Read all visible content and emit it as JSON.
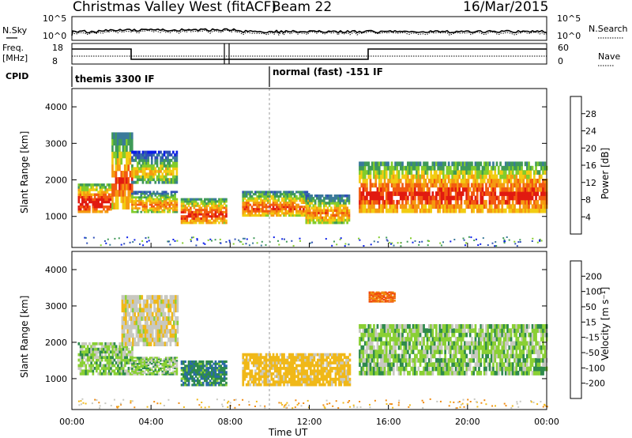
{
  "header": {
    "station": "Christmas Valley West (fitACF)",
    "beam": "Beam 22",
    "date": "16/Mar/2015"
  },
  "strips": {
    "nsky_label": "N.Sky",
    "nsky_ticks": [
      "10^5",
      "10^0"
    ],
    "nsearch_label": "N.Search",
    "nsearch_ticks": [
      "10^5",
      "10^0"
    ],
    "freq_label": "Freq.",
    "freq_unit": "[MHz]",
    "freq_ticks": [
      "18",
      "8"
    ],
    "nave_label": "Nave",
    "nave_ticks": [
      "60",
      "0"
    ],
    "cpid_label": "CPID",
    "cpid_text_1": "themis 3300 IF",
    "cpid_text_2": "normal (fast) -151 IF"
  },
  "colors": {
    "power_scale": [
      "#0a1ee8",
      "#2f4fb8",
      "#3a7a9a",
      "#3f9a58",
      "#82cc2c",
      "#f2cc12",
      "#f59a10",
      "#f25a10",
      "#e11a10"
    ],
    "velocity_scale": [
      "#1e2ed8",
      "#2a6aa8",
      "#2e8a4c",
      "#8ad034",
      "#c8c8c0",
      "#f0b818",
      "#f08a10",
      "#f04a10",
      "#e01010"
    ]
  },
  "chart_data": [
    {
      "type": "heatmap",
      "panel": "power",
      "ylabel": "Slant Range [km]",
      "yticks": [
        "4000",
        "3000",
        "2000",
        "1000"
      ],
      "ylim": [
        150,
        4500
      ],
      "xlim": [
        0,
        24
      ],
      "colorbar_label": "Power [dB]",
      "colorbar_ticks": [
        "28",
        "24",
        "20",
        "16",
        "12",
        "8",
        "4"
      ],
      "echo_bands": [
        {
          "t_start": 0.3,
          "t_end": 2.0,
          "range_min": 1100,
          "range_max": 1900,
          "power_db": 22
        },
        {
          "t_start": 2.0,
          "t_end": 3.0,
          "range_min": 1200,
          "range_max": 3300,
          "power_db": 18
        },
        {
          "t_start": 3.0,
          "t_end": 5.3,
          "range_min": 1100,
          "range_max": 1700,
          "power_db": 16
        },
        {
          "t_start": 3.0,
          "t_end": 5.3,
          "range_min": 1900,
          "range_max": 2800,
          "power_db": 12
        },
        {
          "t_start": 5.5,
          "t_end": 7.8,
          "range_min": 800,
          "range_max": 1500,
          "power_db": 20
        },
        {
          "t_start": 8.6,
          "t_end": 12.0,
          "range_min": 1000,
          "range_max": 1700,
          "power_db": 18
        },
        {
          "t_start": 11.8,
          "t_end": 14.0,
          "range_min": 800,
          "range_max": 1600,
          "power_db": 16
        },
        {
          "t_start": 14.5,
          "t_end": 24.0,
          "range_min": 1100,
          "range_max": 2500,
          "power_db": 20
        }
      ]
    },
    {
      "type": "heatmap",
      "panel": "velocity",
      "ylabel": "Slant Range [km]",
      "yticks": [
        "4000",
        "3000",
        "2000",
        "1000"
      ],
      "ylim": [
        150,
        4500
      ],
      "xlim": [
        0,
        24
      ],
      "xticks": [
        "00:00",
        "04:00",
        "08:00",
        "12:00",
        "16:00",
        "20:00",
        "00:00"
      ],
      "xlabel": "Time UT",
      "colorbar_label": "Velocity [m s⁻¹]",
      "colorbar_ticks": [
        "200",
        "100",
        "50",
        "15",
        "-15",
        "-50",
        "-100",
        "-200"
      ],
      "echo_bands": [
        {
          "t_start": 0.3,
          "t_end": 3.0,
          "range_min": 1100,
          "range_max": 2000,
          "velocity": 0
        },
        {
          "t_start": 2.5,
          "t_end": 5.3,
          "range_min": 1900,
          "range_max": 3300,
          "velocity": -40
        },
        {
          "t_start": 3.0,
          "t_end": 5.3,
          "range_min": 1100,
          "range_max": 1600,
          "velocity": 0
        },
        {
          "t_start": 5.5,
          "t_end": 7.8,
          "range_min": 800,
          "range_max": 1500,
          "velocity": 40
        },
        {
          "t_start": 8.6,
          "t_end": 14.0,
          "range_min": 800,
          "range_max": 1700,
          "velocity": -70
        },
        {
          "t_start": 15.0,
          "t_end": 16.3,
          "range_min": 3100,
          "range_max": 3400,
          "velocity": -200
        },
        {
          "t_start": 14.5,
          "t_end": 24.0,
          "range_min": 1100,
          "range_max": 2500,
          "velocity": 0
        }
      ]
    }
  ]
}
